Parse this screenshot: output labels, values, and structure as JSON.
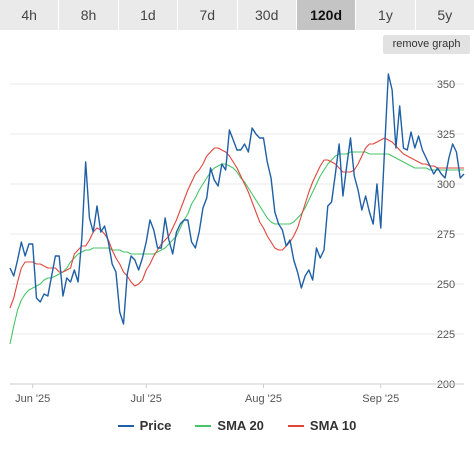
{
  "range_tabs": [
    {
      "label": "4h",
      "active": false
    },
    {
      "label": "8h",
      "active": false
    },
    {
      "label": "1d",
      "active": false
    },
    {
      "label": "7d",
      "active": false
    },
    {
      "label": "30d",
      "active": false
    },
    {
      "label": "120d",
      "active": true
    },
    {
      "label": "1y",
      "active": false
    },
    {
      "label": "5y",
      "active": false
    }
  ],
  "remove_graph_label": "remove graph",
  "colors": {
    "price": "#1f5fa6",
    "sma20": "#49c46a",
    "sma10": "#e0453b",
    "grid": "#e8e8e8",
    "axis_text": "#555555"
  },
  "chart_data": {
    "type": "line",
    "x_ticks": [
      "Jun '25",
      "Jul '25",
      "Aug '25",
      "Sep '25"
    ],
    "x": [
      "2025-05-26",
      "2025-05-27",
      "2025-05-28",
      "2025-05-29",
      "2025-05-30",
      "2025-05-31",
      "2025-06-01",
      "2025-06-02",
      "2025-06-03",
      "2025-06-04",
      "2025-06-05",
      "2025-06-06",
      "2025-06-07",
      "2025-06-08",
      "2025-06-09",
      "2025-06-10",
      "2025-06-11",
      "2025-06-12",
      "2025-06-13",
      "2025-06-14",
      "2025-06-15",
      "2025-06-16",
      "2025-06-17",
      "2025-06-18",
      "2025-06-19",
      "2025-06-20",
      "2025-06-21",
      "2025-06-22",
      "2025-06-23",
      "2025-06-24",
      "2025-06-25",
      "2025-06-26",
      "2025-06-27",
      "2025-06-28",
      "2025-06-29",
      "2025-06-30",
      "2025-07-01",
      "2025-07-02",
      "2025-07-03",
      "2025-07-04",
      "2025-07-05",
      "2025-07-06",
      "2025-07-07",
      "2025-07-08",
      "2025-07-09",
      "2025-07-10",
      "2025-07-11",
      "2025-07-12",
      "2025-07-13",
      "2025-07-14",
      "2025-07-15",
      "2025-07-16",
      "2025-07-17",
      "2025-07-18",
      "2025-07-19",
      "2025-07-20",
      "2025-07-21",
      "2025-07-22",
      "2025-07-23",
      "2025-07-24",
      "2025-07-25",
      "2025-07-26",
      "2025-07-27",
      "2025-07-28",
      "2025-07-29",
      "2025-07-30",
      "2025-07-31",
      "2025-08-01",
      "2025-08-02",
      "2025-08-03",
      "2025-08-04",
      "2025-08-05",
      "2025-08-06",
      "2025-08-07",
      "2025-08-08",
      "2025-08-09",
      "2025-08-10",
      "2025-08-11",
      "2025-08-12",
      "2025-08-13",
      "2025-08-14",
      "2025-08-15",
      "2025-08-16",
      "2025-08-17",
      "2025-08-18",
      "2025-08-19",
      "2025-08-20",
      "2025-08-21",
      "2025-08-22",
      "2025-08-23",
      "2025-08-24",
      "2025-08-25",
      "2025-08-26",
      "2025-08-27",
      "2025-08-28",
      "2025-08-29",
      "2025-08-30",
      "2025-08-31",
      "2025-09-01",
      "2025-09-02",
      "2025-09-03",
      "2025-09-04",
      "2025-09-05",
      "2025-09-06",
      "2025-09-07",
      "2025-09-08",
      "2025-09-09",
      "2025-09-10",
      "2025-09-11",
      "2025-09-12",
      "2025-09-13",
      "2025-09-14",
      "2025-09-15",
      "2025-09-16",
      "2025-09-17",
      "2025-09-18",
      "2025-09-19",
      "2025-09-20",
      "2025-09-21",
      "2025-09-22",
      "2025-09-23"
    ],
    "series": [
      {
        "name": "Price",
        "color": "#1f5fa6",
        "values": [
          258,
          254,
          262,
          271,
          264,
          270,
          270,
          243,
          241,
          245,
          244,
          254,
          264,
          264,
          244,
          253,
          251,
          257,
          251,
          273,
          311,
          283,
          276,
          289,
          276,
          279,
          271,
          260,
          256,
          236,
          230,
          255,
          264,
          262,
          257,
          263,
          271,
          282,
          277,
          268,
          268,
          283,
          272,
          265,
          276,
          280,
          282,
          282,
          271,
          268,
          276,
          288,
          293,
          308,
          302,
          299,
          310,
          307,
          327,
          322,
          317,
          317,
          320,
          316,
          328,
          325,
          323,
          323,
          311,
          303,
          286,
          280,
          277,
          269,
          272,
          262,
          256,
          248,
          254,
          257,
          252,
          268,
          263,
          267,
          289,
          291,
          305,
          320,
          294,
          309,
          323,
          304,
          297,
          287,
          294,
          286,
          280,
          300,
          278,
          317,
          355,
          347,
          318,
          339,
          318,
          317,
          326,
          318,
          324,
          317,
          313,
          309,
          305,
          308,
          305,
          303,
          313,
          320,
          316,
          303,
          305
        ]
      },
      {
        "name": "SMA 20",
        "color": "#49c46a",
        "values": [
          220,
          229,
          237,
          242,
          245,
          247,
          248,
          249,
          250,
          252,
          253,
          253,
          254,
          255,
          256,
          258,
          261,
          263,
          265,
          266,
          267,
          267,
          268,
          268,
          268,
          268,
          268,
          267,
          267,
          267,
          266,
          266,
          265,
          265,
          265,
          265,
          265,
          265,
          265,
          266,
          267,
          268,
          270,
          272,
          274,
          278,
          282,
          285,
          290,
          293,
          297,
          300,
          303,
          306,
          308,
          309,
          310,
          310,
          309,
          308,
          306,
          303,
          301,
          298,
          295,
          292,
          289,
          286,
          283,
          281,
          280,
          280,
          280,
          280,
          280,
          281,
          283,
          285,
          288,
          292,
          296,
          300,
          304,
          307,
          310,
          312,
          314,
          315,
          315,
          315,
          316,
          316,
          316,
          316,
          316,
          315,
          315,
          315,
          315,
          315,
          315,
          314,
          313,
          312,
          311,
          310,
          309,
          308,
          308,
          308,
          308,
          307,
          307,
          307,
          307,
          307,
          307,
          307,
          307,
          307,
          307
        ]
      },
      {
        "name": "SMA 10",
        "color": "#e0453b",
        "values": [
          238,
          243,
          251,
          258,
          261,
          261,
          261,
          260,
          260,
          259,
          258,
          258,
          258,
          256,
          256,
          257,
          258,
          265,
          267,
          269,
          269,
          272,
          276,
          278,
          277,
          275,
          272,
          267,
          263,
          260,
          256,
          254,
          251,
          249,
          250,
          252,
          257,
          260,
          264,
          267,
          270,
          272,
          274,
          278,
          282,
          287,
          292,
          297,
          301,
          305,
          307,
          310,
          314,
          316,
          318,
          318,
          317,
          316,
          314,
          311,
          308,
          304,
          300,
          296,
          291,
          286,
          281,
          278,
          274,
          271,
          268,
          267,
          267,
          269,
          271,
          274,
          278,
          284,
          290,
          296,
          301,
          305,
          309,
          312,
          312,
          311,
          310,
          308,
          306,
          306,
          306,
          307,
          310,
          314,
          318,
          320,
          320,
          321,
          322,
          323,
          322,
          321,
          319,
          317,
          315,
          314,
          313,
          312,
          311,
          310,
          310,
          309,
          309,
          308,
          308,
          308,
          308,
          308,
          308,
          308,
          308
        ]
      }
    ],
    "y_ticks": [
      200,
      225,
      250,
      275,
      300,
      325,
      350
    ],
    "ylim": [
      200,
      360
    ],
    "grid": true,
    "legend_position": "bottom-center"
  }
}
